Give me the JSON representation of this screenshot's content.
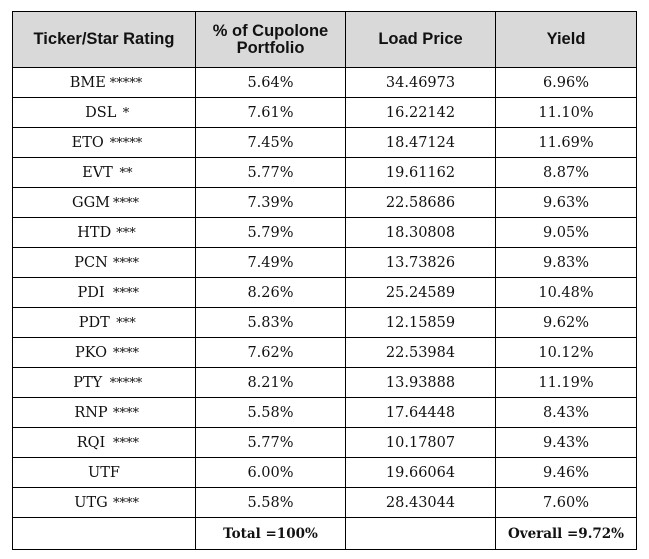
{
  "table": {
    "headers": [
      "Ticker/Star Rating",
      "% of Cupolone Portfolio",
      "Load Price",
      "Yield"
    ],
    "rows": [
      {
        "ticker": "BME",
        "stars": "*****",
        "pct": "5.64%",
        "price": "34.46973",
        "yield": "6.96%"
      },
      {
        "ticker": "DSL",
        "stars": "*",
        "pct": "7.61%",
        "price": "16.22142",
        "yield": "11.10%"
      },
      {
        "ticker": "ETO",
        "stars": "*****",
        "pct": "7.45%",
        "price": "18.47124",
        "yield": "11.69%"
      },
      {
        "ticker": "EVT",
        "stars": "**",
        "pct": "5.77%",
        "price": "19.61162",
        "yield": "8.87%"
      },
      {
        "ticker": "GGM",
        "stars": "****",
        "pct": "7.39%",
        "price": "22.58686",
        "yield": "9.63%"
      },
      {
        "ticker": "HTD",
        "stars": "***",
        "pct": "5.79%",
        "price": "18.30808",
        "yield": "9.05%"
      },
      {
        "ticker": "PCN",
        "stars": "****",
        "pct": "7.49%",
        "price": "13.73826",
        "yield": "9.83%"
      },
      {
        "ticker": "PDI",
        "stars": "****",
        "pct": "8.26%",
        "price": "25.24589",
        "yield": "10.48%"
      },
      {
        "ticker": "PDT",
        "stars": "***",
        "pct": "5.83%",
        "price": "12.15859",
        "yield": "9.62%"
      },
      {
        "ticker": "PKO",
        "stars": "****",
        "pct": "7.62%",
        "price": "22.53984",
        "yield": "10.12%"
      },
      {
        "ticker": "PTY",
        "stars": "*****",
        "pct": "8.21%",
        "price": "13.93888",
        "yield": "11.19%"
      },
      {
        "ticker": "RNP",
        "stars": "****",
        "pct": "5.58%",
        "price": "17.64448",
        "yield": "8.43%"
      },
      {
        "ticker": "RQI",
        "stars": "****",
        "pct": "5.77%",
        "price": "10.17807",
        "yield": "9.43%"
      },
      {
        "ticker": "UTF",
        "stars": "",
        "pct": "6.00%",
        "price": "19.66064",
        "yield": "9.46%"
      },
      {
        "ticker": "UTG",
        "stars": "****",
        "pct": "5.58%",
        "price": "28.43044",
        "yield": "7.60%"
      }
    ],
    "footer": {
      "col1": "",
      "total": "Total =100%",
      "col3": "",
      "overall": "Overall =9.72%"
    }
  },
  "colors": {
    "header_background": "#d9d9d9",
    "border": "#000000",
    "text": "#111111"
  }
}
